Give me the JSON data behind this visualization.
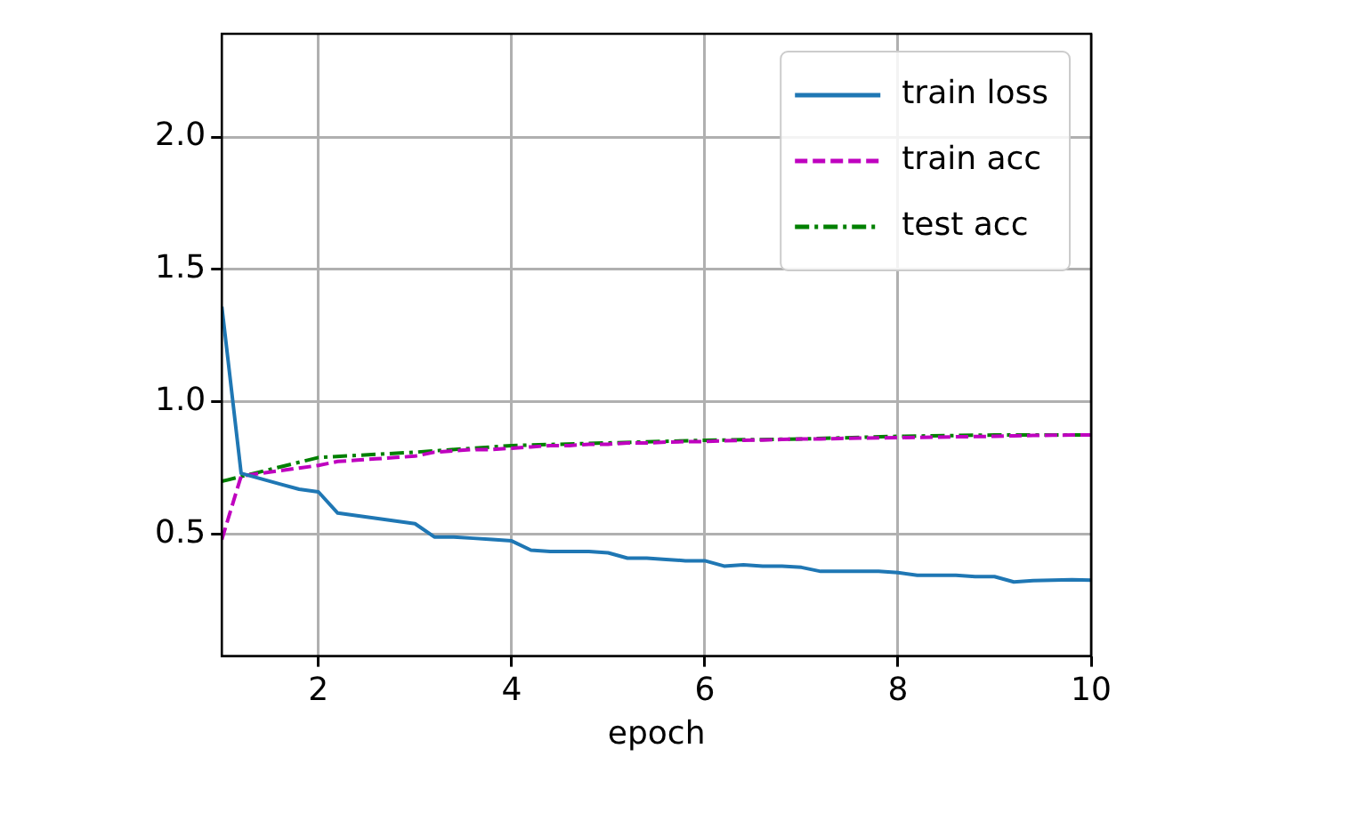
{
  "chart_data": {
    "type": "line",
    "xlabel": "epoch",
    "xlim": [
      1,
      10
    ],
    "xticks": [
      2,
      4,
      6,
      8,
      10
    ],
    "ylim": [
      0.04,
      2.39
    ],
    "yticks": [
      0.5,
      {
        "value": 1,
        "label": "1.0"
      },
      1.5,
      {
        "value": 2,
        "label": "2.0"
      }
    ],
    "grid": true,
    "legend": "top right",
    "marker": "none",
    "series": [
      {
        "name": "train loss",
        "color": "#1f77b4",
        "line_style": "solid",
        "x": [
          1,
          1.2,
          1.4,
          1.6,
          1.8,
          2,
          2.2,
          2.4,
          2.6,
          2.8,
          3,
          3.2,
          3.4,
          3.6,
          3.8,
          4,
          4.2,
          4.4,
          4.6,
          4.8,
          5,
          5.2,
          5.4,
          5.6,
          5.8,
          6,
          6.2,
          6.4,
          6.6,
          6.8,
          7,
          7.2,
          7.4,
          7.6,
          7.8,
          8,
          8.2,
          8.4,
          8.6,
          8.8,
          9,
          9.2,
          9.4,
          9.6,
          9.8,
          10
        ],
        "values": [
          1.36,
          0.73,
          0.71,
          0.69,
          0.67,
          0.66,
          0.58,
          0.57,
          0.56,
          0.55,
          0.54,
          0.49,
          0.49,
          0.485,
          0.48,
          0.475,
          0.44,
          0.435,
          0.435,
          0.435,
          0.43,
          0.41,
          0.41,
          0.405,
          0.4,
          0.4,
          0.38,
          0.385,
          0.38,
          0.38,
          0.375,
          0.36,
          0.36,
          0.36,
          0.36,
          0.355,
          0.345,
          0.345,
          0.345,
          0.34,
          0.34,
          0.32,
          0.325,
          0.327,
          0.328,
          0.327
        ]
      },
      {
        "name": "train acc",
        "color": "#bf00bf",
        "line_style": "dashed",
        "x": [
          1,
          1.2,
          1.4,
          1.6,
          1.8,
          2,
          2.2,
          2.4,
          2.6,
          2.8,
          3,
          3.2,
          3.4,
          3.6,
          3.8,
          4,
          4.2,
          4.4,
          4.6,
          4.8,
          5,
          5.2,
          5.4,
          5.6,
          5.8,
          6,
          6.2,
          6.4,
          6.6,
          6.8,
          7,
          7.2,
          7.4,
          7.6,
          7.8,
          8,
          8.2,
          8.4,
          8.6,
          8.8,
          9,
          9.2,
          9.4,
          9.6,
          9.8,
          10
        ],
        "values": [
          0.48,
          0.72,
          0.73,
          0.74,
          0.75,
          0.76,
          0.775,
          0.78,
          0.785,
          0.79,
          0.795,
          0.81,
          0.815,
          0.82,
          0.82,
          0.825,
          0.83,
          0.835,
          0.835,
          0.84,
          0.84,
          0.845,
          0.845,
          0.848,
          0.85,
          0.85,
          0.853,
          0.855,
          0.856,
          0.858,
          0.86,
          0.86,
          0.862,
          0.863,
          0.864,
          0.865,
          0.866,
          0.867,
          0.868,
          0.869,
          0.87,
          0.872,
          0.873,
          0.874,
          0.875,
          0.875
        ]
      },
      {
        "name": "test acc",
        "color": "#008000",
        "line_style": "dashdot",
        "x": [
          1,
          2,
          3,
          4,
          5,
          6,
          7,
          8,
          9,
          10
        ],
        "values": [
          0.7,
          0.79,
          0.81,
          0.835,
          0.845,
          0.855,
          0.86,
          0.87,
          0.875,
          0.875
        ]
      }
    ]
  }
}
